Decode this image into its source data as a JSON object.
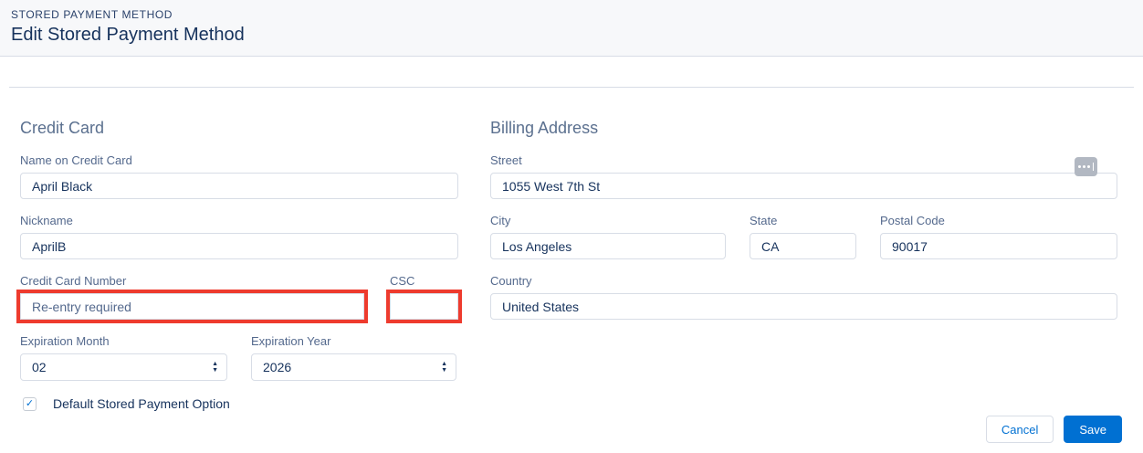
{
  "header": {
    "eyebrow": "STORED PAYMENT METHOD",
    "title": "Edit Stored Payment Method"
  },
  "credit_card": {
    "heading": "Credit Card",
    "name_on_card": {
      "label": "Name on Credit Card",
      "value": "April Black"
    },
    "nickname": {
      "label": "Nickname",
      "value": "AprilB"
    },
    "card_number": {
      "label": "Credit Card Number",
      "value": "Re-entry required",
      "highlighted": true
    },
    "csc": {
      "label": "CSC",
      "value": "",
      "highlighted": true
    },
    "exp_month": {
      "label": "Expiration Month",
      "value": "02"
    },
    "exp_year": {
      "label": "Expiration Year",
      "value": "2026"
    },
    "default_option": {
      "label": "Default Stored Payment Option",
      "checked": true
    }
  },
  "billing_address": {
    "heading": "Billing Address",
    "street": {
      "label": "Street",
      "value": "1055 West 7th St"
    },
    "city": {
      "label": "City",
      "value": "Los Angeles"
    },
    "state": {
      "label": "State",
      "value": "CA"
    },
    "postal_code": {
      "label": "Postal Code",
      "value": "90017"
    },
    "country": {
      "label": "Country",
      "value": "United States"
    }
  },
  "actions": {
    "cancel": "Cancel",
    "save": "Save"
  },
  "icons": {
    "stepper_up": "▲",
    "stepper_down": "▼",
    "checkbox_check": "✓"
  },
  "colors": {
    "brand_blue": "#0070d2",
    "annotation_red": "#ee3b2e",
    "header_background": "#f7f8fa",
    "divider": "#d8dde6",
    "title_text": "#16325c",
    "label_text": "#54698d"
  }
}
